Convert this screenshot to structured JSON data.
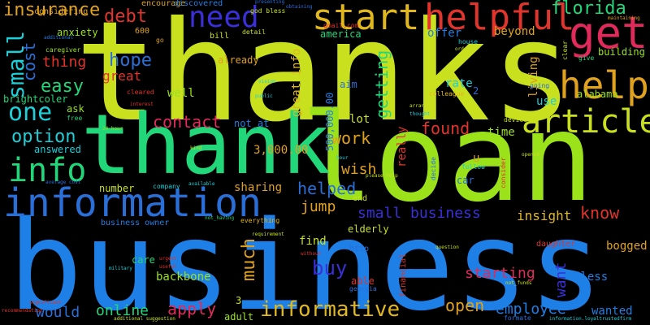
{
  "words": [
    {
      "text": "thanks",
      "color": "#c8e01e"
    },
    {
      "text": "business",
      "color": "#1e7fe6"
    },
    {
      "text": "loan",
      "color": "#9be21a"
    },
    {
      "text": "thank",
      "color": "#22d67a"
    },
    {
      "text": "information",
      "color": "#2a6fd8"
    },
    {
      "text": "helpful",
      "color": "#e0342c"
    },
    {
      "text": "get",
      "color": "#e02a5c"
    },
    {
      "text": "start",
      "color": "#e0b81e"
    },
    {
      "text": "need",
      "color": "#3a2fd8"
    },
    {
      "text": "help",
      "color": "#e0a21e"
    },
    {
      "text": "article",
      "color": "#c8e01e"
    },
    {
      "text": "info",
      "color": "#22d67a"
    },
    {
      "text": "one",
      "color": "#1ecfd8"
    },
    {
      "text": "florida",
      "color": "#22d67a"
    },
    {
      "text": "insurance",
      "color": "#e0a21e"
    },
    {
      "text": "debt",
      "color": "#e0342c"
    },
    {
      "text": "small",
      "color": "#1ecfd8"
    },
    {
      "text": "cost",
      "color": "#2a6fd8"
    },
    {
      "text": "hope",
      "color": "#2a6fd8"
    },
    {
      "text": "great",
      "color": "#e0342c"
    },
    {
      "text": "easy",
      "color": "#22d67a"
    },
    {
      "text": "thing",
      "color": "#e0342c"
    },
    {
      "text": "option",
      "color": "#1ecfd8"
    },
    {
      "text": "contact",
      "color": "#e02a5c"
    },
    {
      "text": "found",
      "color": "#e0342c"
    },
    {
      "text": "work",
      "color": "#e0a21e"
    },
    {
      "text": "wish",
      "color": "#e0a21e"
    },
    {
      "text": "getting",
      "color": "#22d67a"
    },
    {
      "text": "much",
      "color": "#e0a21e"
    },
    {
      "text": "helped",
      "color": "#2a6fd8"
    },
    {
      "text": "jump",
      "color": "#e0a21e"
    },
    {
      "text": "small business",
      "color": "#3a2fd8"
    },
    {
      "text": "know",
      "color": "#e0342c"
    },
    {
      "text": "insight",
      "color": "#e0b81e"
    },
    {
      "text": "want",
      "color": "#3a2fd8"
    },
    {
      "text": "buy",
      "color": "#3a2fd8"
    },
    {
      "text": "starting",
      "color": "#e02a5c"
    },
    {
      "text": "open",
      "color": "#e0a21e"
    },
    {
      "text": "employee",
      "color": "#1e7fe6"
    },
    {
      "text": "informative",
      "color": "#e0b81e"
    },
    {
      "text": "apply",
      "color": "#e02a5c"
    },
    {
      "text": "online",
      "color": "#22d67a"
    },
    {
      "text": "would",
      "color": "#2a6fd8"
    },
    {
      "text": "backbone",
      "color": "#9be21a"
    },
    {
      "text": "bless",
      "color": "#1e7fe6"
    },
    {
      "text": "bogged",
      "color": "#e0a21e"
    },
    {
      "text": "wanted",
      "color": "#1e7fe6"
    },
    {
      "text": "sharing",
      "color": "#e0a21e"
    },
    {
      "text": "number",
      "color": "#c8e01e"
    },
    {
      "text": "3,000.00",
      "color": "#e0a21e"
    },
    {
      "text": "500,000.00",
      "color": "#1e7fe6"
    },
    {
      "text": "great info",
      "color": "#e0b81e"
    },
    {
      "text": "rate",
      "color": "#1ecfd8"
    },
    {
      "text": "offer",
      "color": "#1e7fe6"
    },
    {
      "text": "america",
      "color": "#22d67a"
    },
    {
      "text": "already",
      "color": "#e0a21e"
    },
    {
      "text": "well",
      "color": "#9be21a"
    },
    {
      "text": "living",
      "color": "#e0a21e"
    },
    {
      "text": "beyond",
      "color": "#e0a21e"
    },
    {
      "text": "building",
      "color": "#9be21a"
    },
    {
      "text": "anxiety",
      "color": "#9be21a"
    },
    {
      "text": "brightcoler",
      "color": "#22d67a"
    },
    {
      "text": "ask",
      "color": "#9be21a"
    },
    {
      "text": "answered",
      "color": "#1ecfd8"
    },
    {
      "text": "aim",
      "color": "#2a6fd8"
    },
    {
      "text": "lot",
      "color": "#c8e01e"
    },
    {
      "text": "use",
      "color": "#1ecfd8"
    },
    {
      "text": "time",
      "color": "#9be21a"
    },
    {
      "text": "alabama",
      "color": "#9be21a"
    },
    {
      "text": "really",
      "color": "#e0342c"
    },
    {
      "text": "find",
      "color": "#c8e01e"
    },
    {
      "text": "care",
      "color": "#22d67a"
    },
    {
      "text": "adult",
      "color": "#9be21a"
    },
    {
      "text": "able",
      "color": "#e0342c"
    },
    {
      "text": "elderly",
      "color": "#c8e01e"
    },
    {
      "text": "end",
      "color": "#c8e01e"
    },
    {
      "text": "not_at",
      "color": "#1e7fe6"
    },
    {
      "text": "considering",
      "color": "#e0a21e"
    },
    {
      "text": "encourage",
      "color": "#e0a21e"
    },
    {
      "text": "discovered",
      "color": "#1e7fe6"
    },
    {
      "text": "god bless",
      "color": "#c8e01e"
    },
    {
      "text": "gmail.com",
      "color": "#e0342c"
    },
    {
      "text": "bill",
      "color": "#c8e01e"
    },
    {
      "text": "detail",
      "color": "#c8e01e"
    },
    {
      "text": "600",
      "color": "#e0a21e"
    },
    {
      "text": "caregiver",
      "color": "#9be21a"
    },
    {
      "text": "cleared",
      "color": "#e0342c"
    },
    {
      "text": "business owner",
      "color": "#1e7fe6"
    },
    {
      "text": "company",
      "color": "#1ecfd8"
    },
    {
      "text": "everything",
      "color": "#e0b81e"
    },
    {
      "text": "house",
      "color": "#1ecfd8"
    },
    {
      "text": "colleague",
      "color": "#e0b81e"
    },
    {
      "text": "device",
      "color": "#c8e01e"
    },
    {
      "text": "follow",
      "color": "#1ecfd8"
    },
    {
      "text": "car",
      "color": "#2a6fd8"
    },
    {
      "text": "u",
      "color": "#e0a21e"
    },
    {
      "text": "http",
      "color": "#2a6fd8"
    },
    {
      "text": "daughter",
      "color": "#e0342c"
    },
    {
      "text": "georgia",
      "color": "#2a6fd8"
    },
    {
      "text": "clear",
      "color": "#c8e01e"
    },
    {
      "text": "give",
      "color": "#22d67a"
    },
    {
      "text": "free",
      "color": "#22d67a"
    },
    {
      "text": "3",
      "color": "#c8e01e"
    },
    {
      "text": "2",
      "color": "#2a6fd8"
    },
    {
      "text": "go",
      "color": "#e0a21e"
    },
    {
      "text": "financial",
      "color": "#e0342c"
    },
    {
      "text": "question",
      "color": "#c8e01e"
    },
    {
      "text": "going",
      "color": "#2a6fd8"
    },
    {
      "text": "requirement",
      "color": "#c8e01e"
    },
    {
      "text": "vision",
      "color": "#1ecfd8"
    },
    {
      "text": "public",
      "color": "#1ecfd8"
    },
    {
      "text": "urgent",
      "color": "#e0342c"
    },
    {
      "text": "useful",
      "color": "#e0342c"
    },
    {
      "text": "kind",
      "color": "#c8e01e"
    },
    {
      "text": "opened",
      "color": "#c8e01e"
    },
    {
      "text": "decide",
      "color": "#2a6fd8"
    },
    {
      "text": "consider",
      "color": "#e0342c"
    },
    {
      "text": "additional",
      "color": "#1e7fe6"
    },
    {
      "text": "average cost",
      "color": "#2a6fd8"
    },
    {
      "text": "24 hour",
      "color": "#9be21a"
    },
    {
      "text": "available",
      "color": "#1ecfd8"
    },
    {
      "text": "without",
      "color": "#e0342c"
    },
    {
      "text": "hour",
      "color": "#1ecfd8"
    },
    {
      "text": "formate",
      "color": "#2a6fd8"
    },
    {
      "text": "information.loyaltrustedfirm",
      "color": "#1ecfd8"
    },
    {
      "text": "additional suggestion",
      "color": "#c8e01e"
    },
    {
      "text": "recommendation",
      "color": "#e0342c"
    },
    {
      "text": "significant",
      "color": "#e0342c"
    },
    {
      "text": "please help",
      "color": "#c8e01e"
    },
    {
      "text": "presenting",
      "color": "#2a6fd8"
    },
    {
      "text": "obtaining",
      "color": "#2a6fd8"
    },
    {
      "text": "not_having",
      "color": "#22d67a"
    },
    {
      "text": "maintaining",
      "color": "#e0a21e"
    },
    {
      "text": "order",
      "color": "#c8e01e"
    },
    {
      "text": "arrange",
      "color": "#c8e01e"
    },
    {
      "text": "thought",
      "color": "#1ecfd8"
    },
    {
      "text": "not_funds",
      "color": "#c8e01e"
    },
    {
      "text": "interest",
      "color": "#e0342c"
    },
    {
      "text": "military",
      "color": "#1ecfd8"
    }
  ]
}
